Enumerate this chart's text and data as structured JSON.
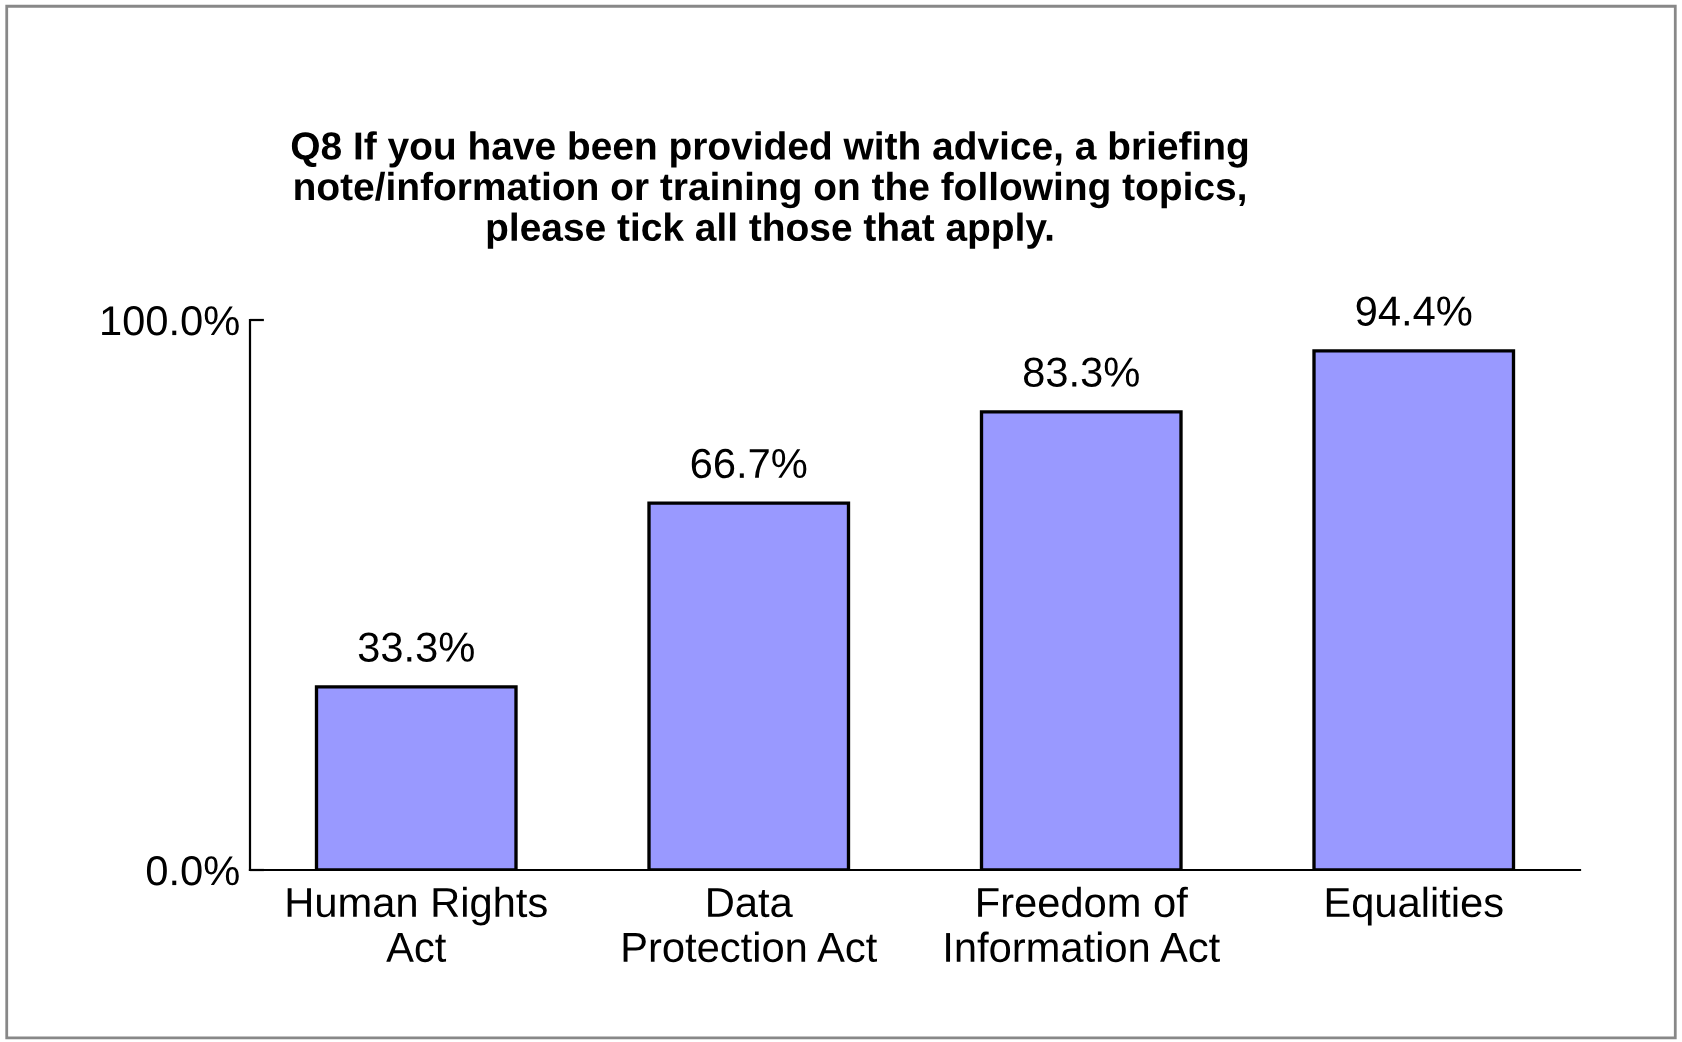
{
  "chart_data": {
    "type": "bar",
    "title": "Q8 If you have been provided with advice, a briefing\nnote/information or training on the following topics,\nplease tick all those that apply.",
    "categories": [
      "Human Rights\nAct",
      "Data\nProtection Act",
      "Freedom of\nInformation Act",
      "Equalities"
    ],
    "values": [
      33.3,
      66.7,
      83.3,
      94.4
    ],
    "color": "#9999ff",
    "value_labels": [
      "33.3%",
      "66.7%",
      "83.3%",
      "94.4%"
    ],
    "ylim": [
      0,
      100
    ],
    "yticks": [
      {
        "value": 0,
        "label": "0.0%"
      },
      {
        "value": 100,
        "label": "100.0%"
      }
    ],
    "grid": false,
    "legend": false
  }
}
